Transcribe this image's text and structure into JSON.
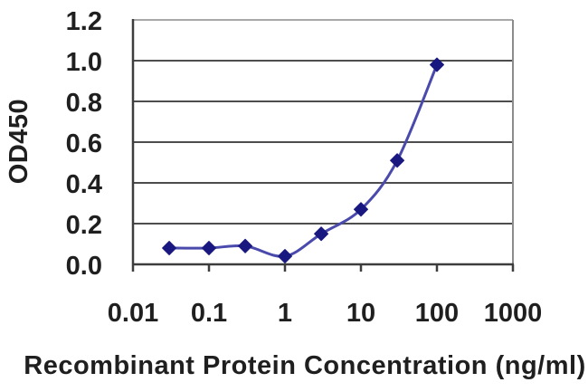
{
  "chart_data": {
    "type": "line",
    "title": "",
    "xlabel": "Recombinant Protein Concentration (ng/ml)",
    "ylabel": "OD450",
    "x_scale": "log",
    "xlim": [
      0.01,
      1000
    ],
    "ylim": [
      0,
      1.2
    ],
    "x_tick_values": [
      0.01,
      0.1,
      1,
      10,
      100,
      1000
    ],
    "x_tick_labels": [
      "0.01",
      "0.1",
      "1",
      "10",
      "100",
      "1000"
    ],
    "y_tick_values": [
      0,
      0.2,
      0.4,
      0.6,
      0.8,
      1.0,
      1.2
    ],
    "y_tick_labels": [
      "0.0",
      "0.2",
      "0.4",
      "0.6",
      "0.8",
      "1.0",
      "1.2"
    ],
    "grid": "horizontal-only",
    "legend": "none",
    "series": [
      {
        "name": "OD450-standard-curve",
        "marker": "diamond",
        "x": [
          0.03,
          0.1,
          0.3,
          1,
          3,
          10,
          30,
          100
        ],
        "y": [
          0.08,
          0.08,
          0.09,
          0.04,
          0.15,
          0.27,
          0.51,
          0.98
        ]
      }
    ],
    "colors": {
      "line": "#4a4aad",
      "marker": "#181880",
      "gridline": "#4d4d4d",
      "axis": "#3d3d3d",
      "border_top": "#a8a8a8",
      "border_right": "#8c8c8c",
      "tick_text": "#1f1f1f",
      "background": "#ffffff"
    }
  }
}
